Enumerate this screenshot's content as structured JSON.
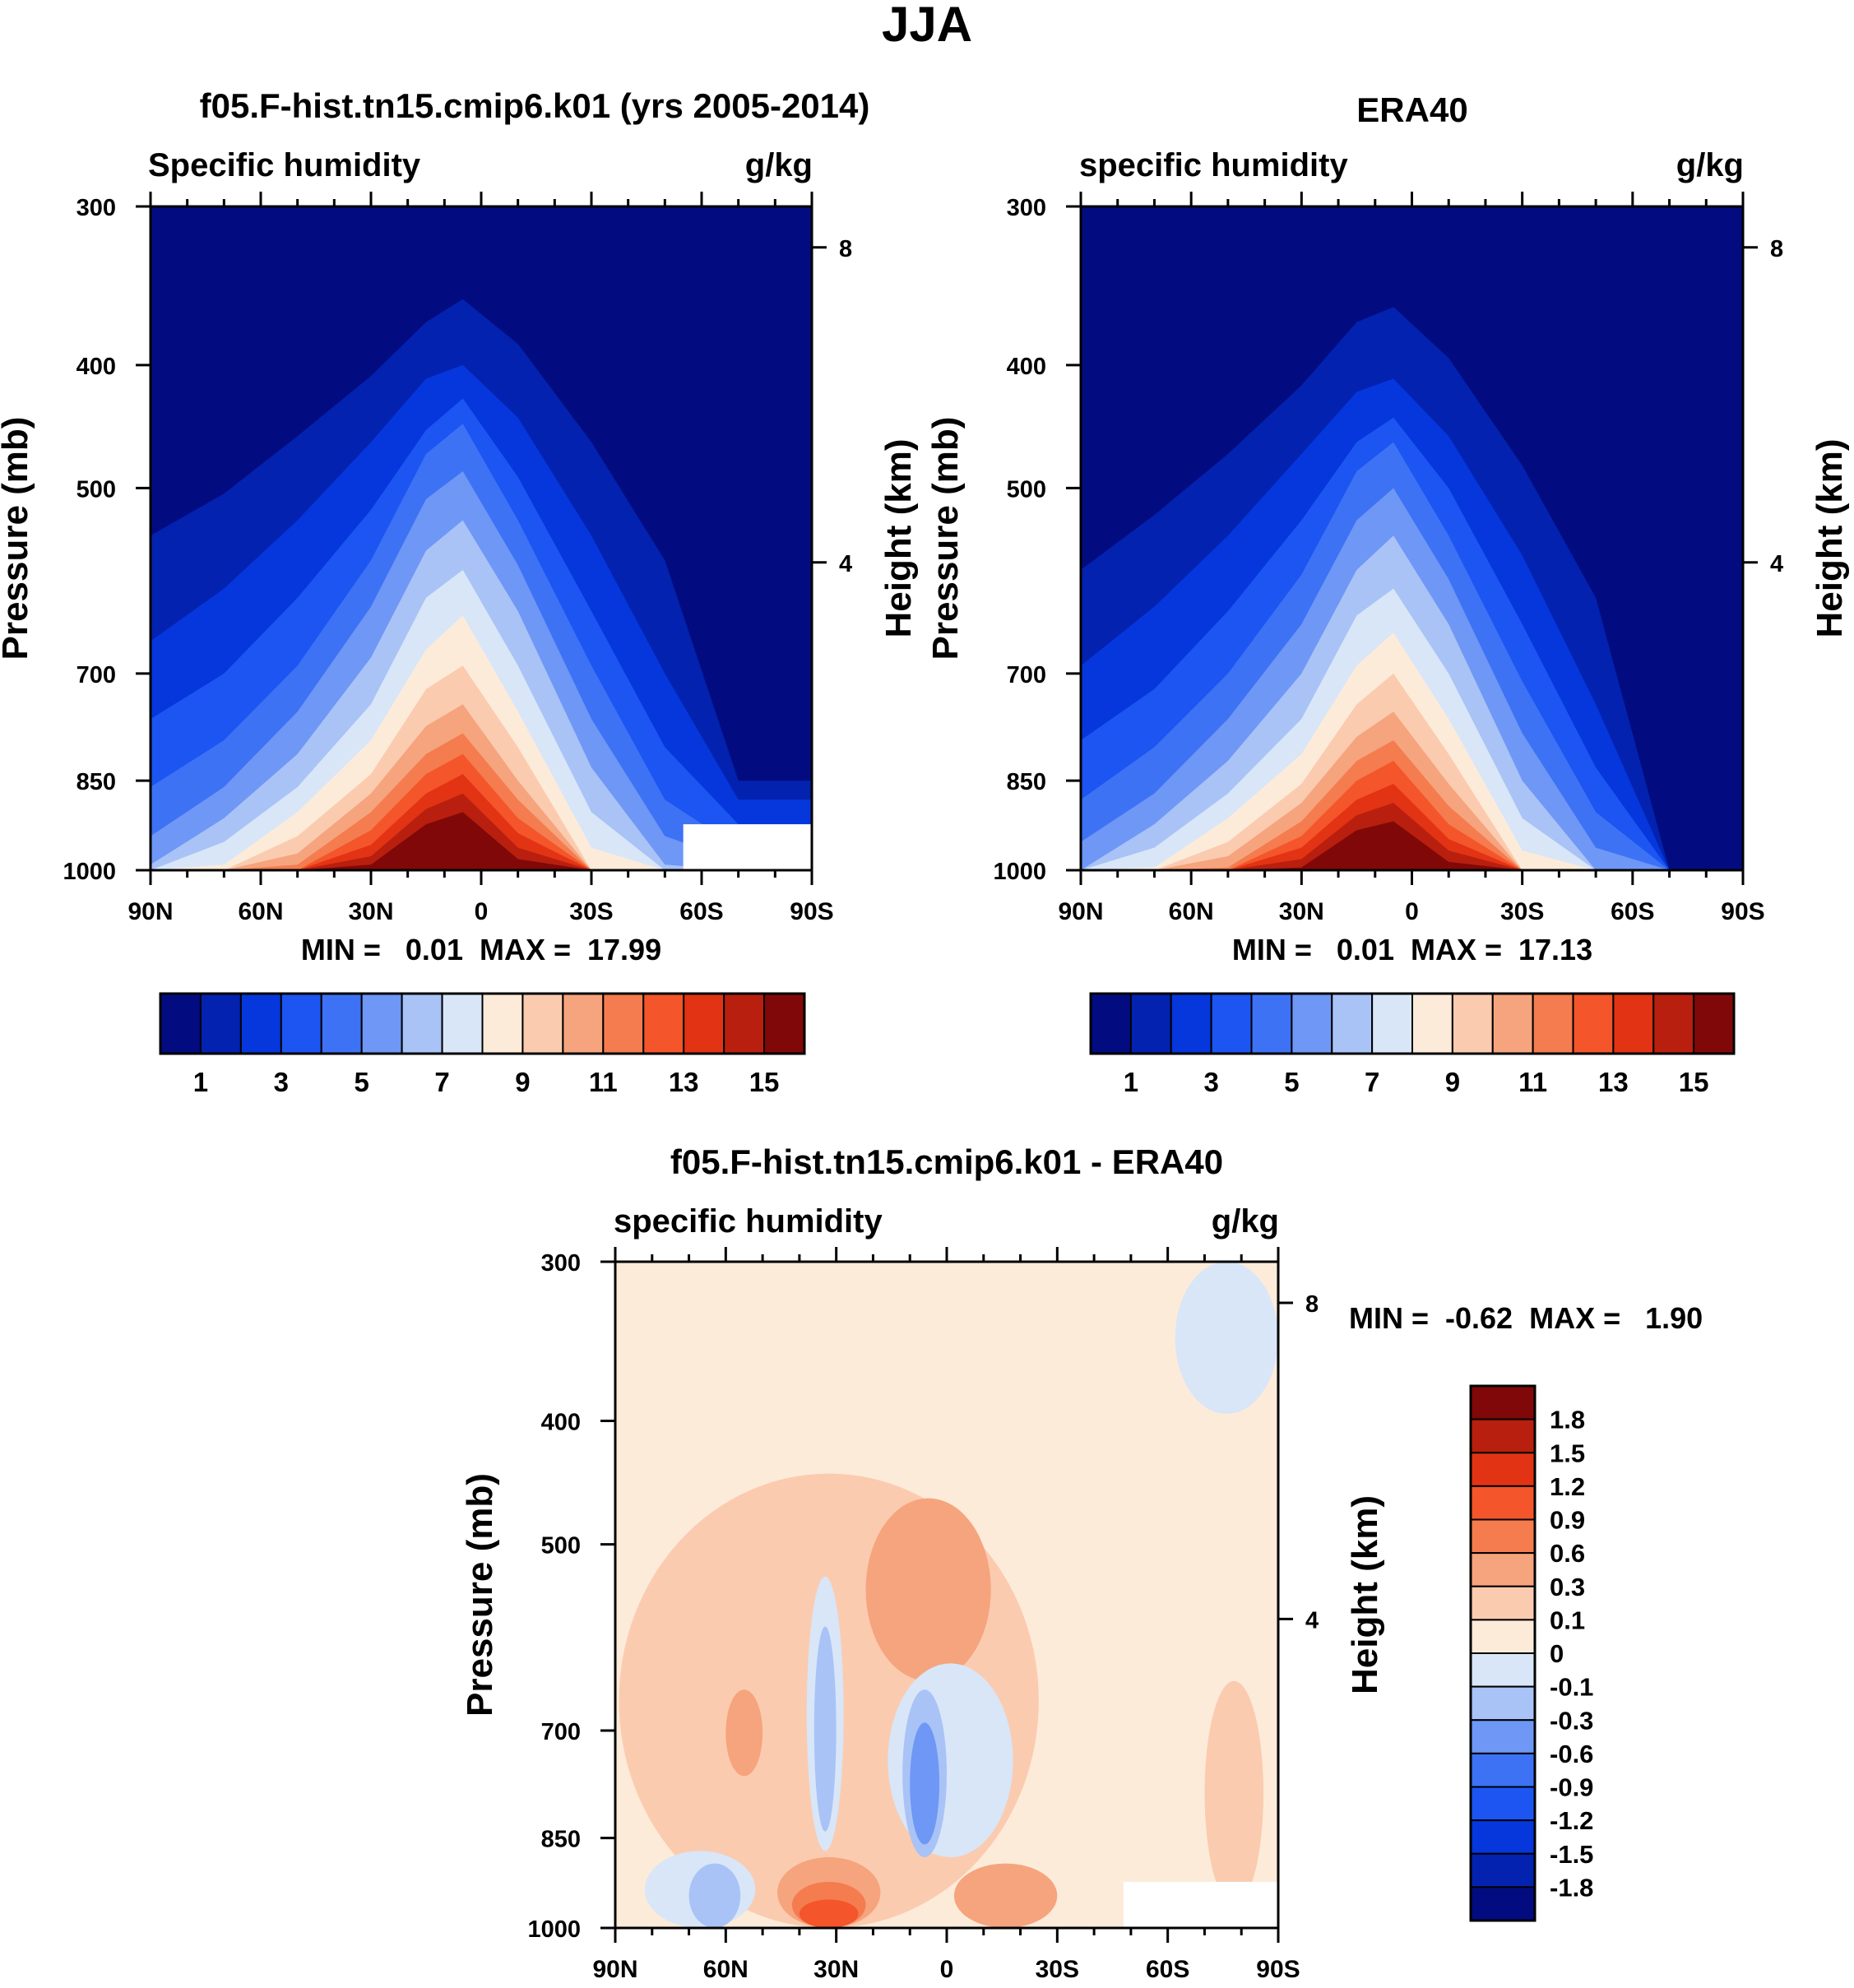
{
  "figure": {
    "title": "JJA"
  },
  "panels": [
    {
      "id": "model",
      "title": "f05.F-hist.tn15.cmip6.k01 (yrs 2005-2014)",
      "left_label": "Specific humidity",
      "right_label": "g/kg",
      "stats": "MIN =   0.01  MAX =  17.99"
    },
    {
      "id": "obs",
      "title": "ERA40",
      "left_label": "specific humidity",
      "right_label": "g/kg",
      "stats": "MIN =   0.01  MAX =  17.13"
    },
    {
      "id": "diff",
      "title": "f05.F-hist.tn15.cmip6.k01 - ERA40",
      "left_label": "specific humidity",
      "right_label": "g/kg",
      "stats": "MIN =  -0.62  MAX =   1.90"
    }
  ],
  "chart_data": [
    {
      "type": "contour",
      "panel": "model",
      "xlabel": "",
      "ylabel": "Pressure (mb)",
      "y2label": "Height (km)",
      "xticks": [
        "90N",
        "60N",
        "30N",
        "0",
        "30S",
        "60S",
        "90S"
      ],
      "x_values": [
        90,
        60,
        30,
        0,
        -30,
        -60,
        -90
      ],
      "yticks": [
        "300",
        "400",
        "500",
        "700",
        "850",
        "1000"
      ],
      "y_values": [
        300,
        400,
        500,
        700,
        850,
        1000
      ],
      "y2ticks": [
        "8",
        "4"
      ],
      "y2_values": [
        8,
        4
      ],
      "ylim": [
        300,
        1000
      ],
      "xlim": [
        90,
        -90
      ],
      "y_scale": "log",
      "contour_levels": [
        1,
        2,
        3,
        4,
        5,
        6,
        7,
        8,
        9,
        10,
        11,
        12,
        13,
        14,
        15,
        16,
        17
      ],
      "ridge_top_pressure": [
        {
          "level": 1,
          "p": [
            545,
            505,
            455,
            408,
            370,
            355,
            385,
            460,
            570,
            850
          ]
        },
        {
          "level": 2,
          "p": [
            660,
            600,
            530,
            460,
            410,
            400,
            440,
            545,
            700,
            880
          ]
        },
        {
          "level": 3,
          "p": [
            760,
            700,
            610,
            520,
            450,
            425,
            490,
            625,
            800,
            920
          ]
        },
        {
          "level": 4,
          "p": [
            860,
            790,
            690,
            570,
            470,
            445,
            530,
            690,
            880,
            960
          ]
        },
        {
          "level": 5,
          "p": [
            940,
            860,
            750,
            620,
            510,
            485,
            575,
            760,
            940,
            985
          ]
        },
        {
          "level": 6,
          "p": [
            990,
            910,
            810,
            680,
            560,
            530,
            625,
            830,
            990,
            1000
          ]
        },
        {
          "level": 7,
          "p": [
            1000,
            950,
            860,
            740,
            610,
            580,
            690,
            900,
            1000,
            1000
          ]
        },
        {
          "level": 8,
          "p": [
            1000,
            990,
            900,
            790,
            670,
            630,
            750,
            960,
            1000,
            1000
          ]
        },
        {
          "level": 9,
          "p": [
            1000,
            1000,
            940,
            840,
            720,
            690,
            800,
            1000,
            1000,
            1000
          ]
        },
        {
          "level": 10,
          "p": [
            1000,
            1000,
            970,
            870,
            770,
            740,
            850,
            1000,
            1000,
            1000
          ]
        },
        {
          "level": 11,
          "p": [
            1000,
            1000,
            990,
            900,
            810,
            780,
            880,
            1000,
            1000,
            1000
          ]
        },
        {
          "level": 12,
          "p": [
            1000,
            1000,
            1000,
            930,
            840,
            810,
            910,
            1000,
            1000,
            1000
          ]
        },
        {
          "level": 13,
          "p": [
            1000,
            1000,
            1000,
            955,
            870,
            840,
            935,
            1000,
            1000,
            1000
          ]
        },
        {
          "level": 14,
          "p": [
            1000,
            1000,
            1000,
            975,
            895,
            870,
            960,
            1000,
            1000,
            1000
          ]
        },
        {
          "level": 15,
          "p": [
            1000,
            1000,
            1000,
            990,
            920,
            900,
            980,
            1000,
            1000,
            1000
          ]
        },
        {
          "level": 16,
          "p": [
            1000,
            1000,
            1000,
            1000,
            945,
            930,
            995,
            1000,
            1000,
            1000
          ]
        }
      ],
      "ridge_lat": [
        90,
        70,
        50,
        30,
        15,
        5,
        -10,
        -30,
        -50,
        -70
      ],
      "missing_region": {
        "lat": [
          -55,
          -90
        ],
        "p": [
          920,
          1000
        ]
      },
      "colorbar": {
        "orientation": "horizontal",
        "labels": [
          "1",
          "3",
          "5",
          "7",
          "9",
          "11",
          "13",
          "15"
        ],
        "colors": [
          "#020c80",
          "#0322b0",
          "#0537dc",
          "#1c55f2",
          "#3d72f5",
          "#6e97f6",
          "#a9c3f7",
          "#d8e6f8",
          "#fdebd9",
          "#fbcbb0",
          "#f6a47d",
          "#f47c4f",
          "#f4552a",
          "#e23314",
          "#b81f0e",
          "#810808"
        ]
      }
    },
    {
      "type": "contour",
      "panel": "obs",
      "xlabel": "",
      "ylabel": "Pressure (mb)",
      "y2label": "Height (km)",
      "xticks": [
        "90N",
        "60N",
        "30N",
        "0",
        "30S",
        "60S",
        "90S"
      ],
      "x_values": [
        90,
        60,
        30,
        0,
        -30,
        -60,
        -90
      ],
      "yticks": [
        "300",
        "400",
        "500",
        "700",
        "850",
        "1000"
      ],
      "y_values": [
        300,
        400,
        500,
        700,
        850,
        1000
      ],
      "y2ticks": [
        "8",
        "4"
      ],
      "y2_values": [
        8,
        4
      ],
      "ylim": [
        300,
        1000
      ],
      "xlim": [
        90,
        -90
      ],
      "y_scale": "log",
      "contour_levels": [
        1,
        2,
        3,
        4,
        5,
        6,
        7,
        8,
        9,
        10,
        11,
        12,
        13,
        14,
        15,
        16,
        17
      ],
      "ridge_top_pressure": [
        {
          "level": 1,
          "p": [
            580,
            525,
            470,
            415,
            370,
            360,
            395,
            480,
            610,
            1000
          ]
        },
        {
          "level": 2,
          "p": [
            690,
            620,
            545,
            470,
            420,
            410,
            455,
            565,
            740,
            1000
          ]
        },
        {
          "level": 3,
          "p": [
            790,
            720,
            625,
            530,
            460,
            440,
            500,
            640,
            830,
            1000
          ]
        },
        {
          "level": 4,
          "p": [
            880,
            800,
            700,
            585,
            485,
            460,
            545,
            710,
            900,
            1000
          ]
        },
        {
          "level": 5,
          "p": [
            950,
            870,
            760,
            640,
            530,
            500,
            590,
            780,
            960,
            1000
          ]
        },
        {
          "level": 6,
          "p": [
            1000,
            920,
            820,
            700,
            580,
            545,
            640,
            850,
            1000,
            1000
          ]
        },
        {
          "level": 7,
          "p": [
            1000,
            960,
            870,
            760,
            630,
            600,
            700,
            910,
            1000,
            1000
          ]
        },
        {
          "level": 8,
          "p": [
            1000,
            995,
            910,
            810,
            690,
            650,
            760,
            965,
            1000,
            1000
          ]
        },
        {
          "level": 9,
          "p": [
            1000,
            1000,
            950,
            855,
            740,
            700,
            810,
            1000,
            1000,
            1000
          ]
        },
        {
          "level": 10,
          "p": [
            1000,
            1000,
            975,
            885,
            785,
            750,
            855,
            1000,
            1000,
            1000
          ]
        },
        {
          "level": 11,
          "p": [
            1000,
            1000,
            995,
            915,
            820,
            790,
            890,
            1000,
            1000,
            1000
          ]
        },
        {
          "level": 12,
          "p": [
            1000,
            1000,
            1000,
            940,
            850,
            820,
            920,
            1000,
            1000,
            1000
          ]
        },
        {
          "level": 13,
          "p": [
            1000,
            1000,
            1000,
            960,
            880,
            855,
            945,
            1000,
            1000,
            1000
          ]
        },
        {
          "level": 14,
          "p": [
            1000,
            1000,
            1000,
            980,
            905,
            885,
            965,
            1000,
            1000,
            1000
          ]
        },
        {
          "level": 15,
          "p": [
            1000,
            1000,
            1000,
            995,
            930,
            915,
            985,
            1000,
            1000,
            1000
          ]
        }
      ],
      "ridge_lat": [
        90,
        70,
        50,
        30,
        15,
        5,
        -10,
        -30,
        -50,
        -70
      ],
      "colorbar": {
        "orientation": "horizontal",
        "labels": [
          "1",
          "3",
          "5",
          "7",
          "9",
          "11",
          "13",
          "15"
        ],
        "colors": [
          "#020c80",
          "#0322b0",
          "#0537dc",
          "#1c55f2",
          "#3d72f5",
          "#6e97f6",
          "#a9c3f7",
          "#d8e6f8",
          "#fdebd9",
          "#fbcbb0",
          "#f6a47d",
          "#f47c4f",
          "#f4552a",
          "#e23314",
          "#b81f0e",
          "#810808"
        ]
      }
    },
    {
      "type": "contour",
      "panel": "diff",
      "xlabel": "",
      "ylabel": "Pressure (mb)",
      "y2label": "Height (km)",
      "xticks": [
        "90N",
        "60N",
        "30N",
        "0",
        "30S",
        "60S",
        "90S"
      ],
      "x_values": [
        90,
        60,
        30,
        0,
        -30,
        -60,
        -90
      ],
      "yticks": [
        "300",
        "400",
        "500",
        "700",
        "850",
        "1000"
      ],
      "y_values": [
        300,
        400,
        500,
        700,
        850,
        1000
      ],
      "y2ticks": [
        "8",
        "4"
      ],
      "y2_values": [
        8,
        4
      ],
      "ylim": [
        300,
        1000
      ],
      "xlim": [
        90,
        -90
      ],
      "y_scale": "log",
      "background_level": 0.1,
      "blobs": [
        {
          "value": 0.3,
          "lat": [
            89,
            -25
          ],
          "p": [
            440,
            1000
          ]
        },
        {
          "value": 0.3,
          "lat": [
            -70,
            -86
          ],
          "p": [
            640,
            960
          ]
        },
        {
          "value": 0.6,
          "lat": [
            22,
            -12
          ],
          "p": [
            460,
            640
          ]
        },
        {
          "value": 0.6,
          "lat": [
            60,
            50
          ],
          "p": [
            650,
            760
          ]
        },
        {
          "value": 0.6,
          "lat": [
            46,
            18
          ],
          "p": [
            880,
            1000
          ]
        },
        {
          "value": 0.6,
          "lat": [
            -2,
            -30
          ],
          "p": [
            890,
            1000
          ]
        },
        {
          "value": 0.9,
          "lat": [
            42,
            22
          ],
          "p": [
            920,
            1000
          ]
        },
        {
          "value": 1.2,
          "lat": [
            40,
            24
          ],
          "p": [
            950,
            1000
          ]
        },
        {
          "value": -0.1,
          "lat": [
            38,
            28
          ],
          "p": [
            530,
            870
          ]
        },
        {
          "value": -0.3,
          "lat": [
            36,
            30
          ],
          "p": [
            580,
            840
          ]
        },
        {
          "value": -0.1,
          "lat": [
            16,
            -18
          ],
          "p": [
            620,
            880
          ]
        },
        {
          "value": -0.3,
          "lat": [
            12,
            0
          ],
          "p": [
            650,
            880
          ]
        },
        {
          "value": -0.6,
          "lat": [
            10,
            2
          ],
          "p": [
            690,
            860
          ]
        },
        {
          "value": -0.1,
          "lat": [
            82,
            52
          ],
          "p": [
            870,
            1000
          ]
        },
        {
          "value": -0.3,
          "lat": [
            70,
            56
          ],
          "p": [
            890,
            1000
          ]
        },
        {
          "value": -0.1,
          "lat": [
            -62,
            -90
          ],
          "p": [
            300,
            395
          ]
        }
      ],
      "missing_region": {
        "lat": [
          -48,
          -90
        ],
        "p": [
          920,
          1000
        ]
      },
      "colorbar": {
        "orientation": "vertical",
        "labels": [
          "1.8",
          "1.5",
          "1.2",
          "0.9",
          "0.6",
          "0.3",
          "0.1",
          "0",
          "-0.1",
          "-0.3",
          "-0.6",
          "-0.9",
          "-1.2",
          "-1.5",
          "-1.8"
        ],
        "colors": [
          "#810808",
          "#b81f0e",
          "#e23314",
          "#f4552a",
          "#f47c4f",
          "#f6a47d",
          "#fbcbb0",
          "#fdebd9",
          "#d8e6f8",
          "#a9c3f7",
          "#6e97f6",
          "#3d72f5",
          "#1c55f2",
          "#0537dc",
          "#0322b0",
          "#020c80"
        ]
      }
    }
  ]
}
